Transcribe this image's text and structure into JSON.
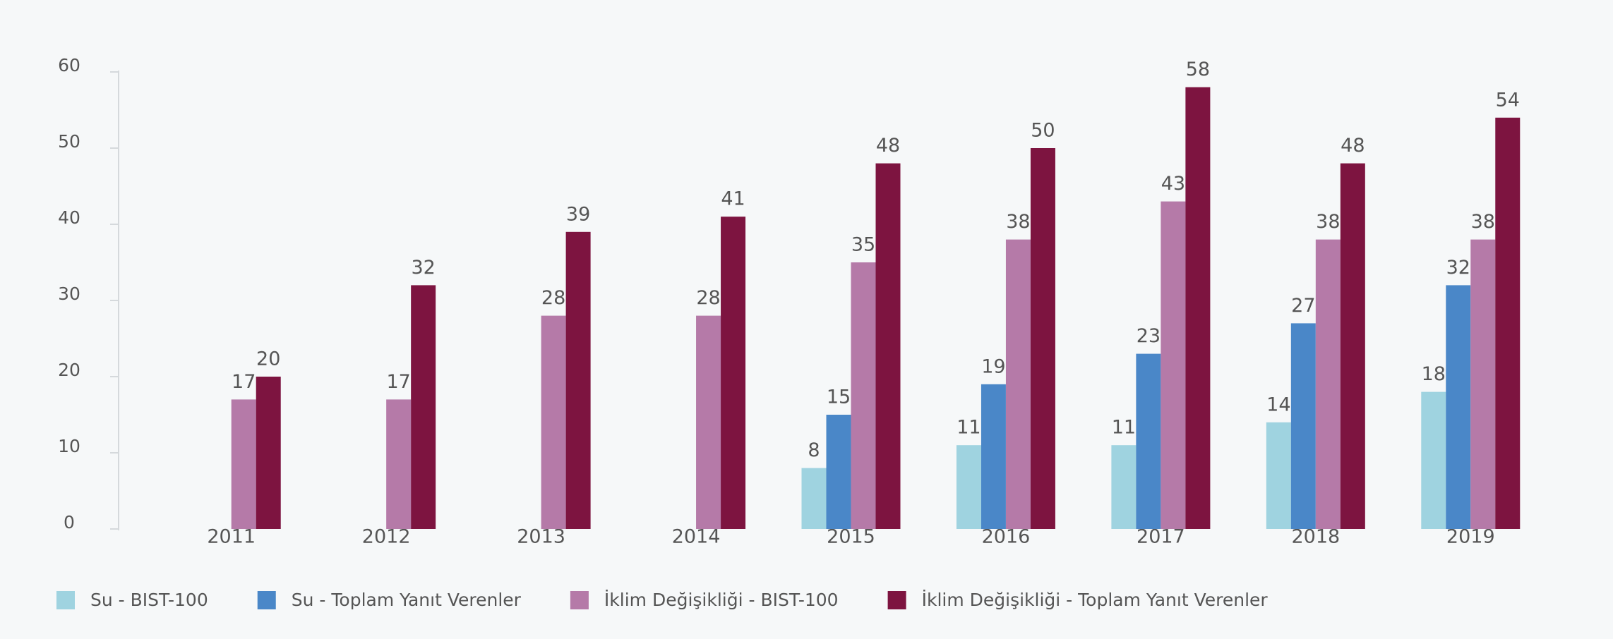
{
  "chart_data": {
    "type": "bar",
    "categories": [
      "2011",
      "2012",
      "2013",
      "2014",
      "2015",
      "2016",
      "2017",
      "2018",
      "2019"
    ],
    "series": [
      {
        "name": "Su - BIST-100",
        "color": "#9fd3e0",
        "values": [
          null,
          null,
          null,
          null,
          8,
          11,
          11,
          14,
          18
        ]
      },
      {
        "name": "Su - Toplam Yanıt Verenler",
        "color": "#4a87c8",
        "values": [
          null,
          null,
          null,
          null,
          15,
          19,
          23,
          27,
          32
        ]
      },
      {
        "name": "İklim Değişikliği - BIST-100",
        "color": "#b57aa8",
        "values": [
          17,
          17,
          28,
          28,
          35,
          38,
          43,
          38,
          38
        ]
      },
      {
        "name": "İklim Değişikliği - Toplam Yanıt Verenler",
        "color": "#7d1440",
        "values": [
          20,
          32,
          39,
          41,
          48,
          50,
          58,
          48,
          54
        ]
      }
    ],
    "ylim": [
      0,
      60
    ],
    "yticks": [
      0,
      10,
      20,
      30,
      40,
      50,
      60
    ],
    "grid": false,
    "legend": "bottom"
  }
}
